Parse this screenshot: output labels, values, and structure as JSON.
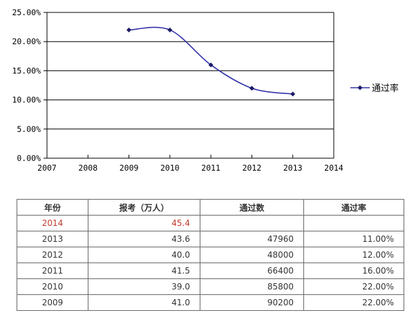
{
  "chart_data": {
    "type": "line",
    "x": [
      2009,
      2010,
      2011,
      2012,
      2013
    ],
    "series": [
      {
        "name": "通过率",
        "values": [
          22,
          22,
          16,
          12,
          11
        ]
      }
    ],
    "xlim": [
      2007,
      2014
    ],
    "ylim": [
      0,
      25
    ],
    "x_ticks": [
      "2007",
      "2008",
      "2009",
      "2010",
      "2011",
      "2012",
      "2013",
      "2014"
    ],
    "y_ticks": [
      "0.00%",
      "5.00%",
      "10.00%",
      "15.00%",
      "20.00%",
      "25.00%"
    ],
    "y_tick_values": [
      0,
      5,
      10,
      15,
      20,
      25
    ],
    "grid": "horizontal",
    "legend_position": "right",
    "smooth": true,
    "line_color": "#3333aa",
    "plot_background": "#ffffff"
  },
  "table": {
    "headers": [
      "年份",
      "报考（万人）",
      "通过数",
      "通过率"
    ],
    "rows": [
      {
        "year": "2014",
        "applicants": "45.4",
        "passed": "",
        "rate": "",
        "highlight": true
      },
      {
        "year": "2013",
        "applicants": "43.6",
        "passed": "47960",
        "rate": "11.00%"
      },
      {
        "year": "2012",
        "applicants": "40.0",
        "passed": "48000",
        "rate": "12.00%"
      },
      {
        "year": "2011",
        "applicants": "41.5",
        "passed": "66400",
        "rate": "16.00%"
      },
      {
        "year": "2010",
        "applicants": "39.0",
        "passed": "85800",
        "rate": "22.00%"
      },
      {
        "year": "2009",
        "applicants": "41.0",
        "passed": "90200",
        "rate": "22.00%"
      }
    ],
    "highlight_color": "#c0392b"
  }
}
